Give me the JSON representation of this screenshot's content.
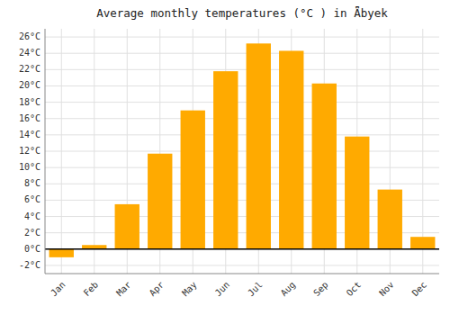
{
  "chart_data": {
    "type": "bar",
    "title": "Average monthly temperatures (°C ) in Ǟbyek",
    "categories": [
      "Jan",
      "Feb",
      "Mar",
      "Apr",
      "May",
      "Jun",
      "Jul",
      "Aug",
      "Sep",
      "Oct",
      "Nov",
      "Dec"
    ],
    "values": [
      -1.0,
      0.5,
      5.5,
      11.7,
      17.0,
      21.8,
      25.2,
      24.3,
      20.3,
      13.8,
      7.3,
      1.5
    ],
    "color": "#FFAA00",
    "ylim": [
      -3.0,
      27.0
    ],
    "yticks": [
      {
        "value": -2,
        "label": "-2°C"
      },
      {
        "value": 0,
        "label": "0°C"
      },
      {
        "value": 2,
        "label": "2°C"
      },
      {
        "value": 4,
        "label": "4°C"
      },
      {
        "value": 6,
        "label": "6°C"
      },
      {
        "value": 8,
        "label": "8°C"
      },
      {
        "value": 10,
        "label": "10°C"
      },
      {
        "value": 12,
        "label": "12°C"
      },
      {
        "value": 14,
        "label": "14°C"
      },
      {
        "value": 16,
        "label": "16°C"
      },
      {
        "value": 18,
        "label": "18°C"
      },
      {
        "value": 20,
        "label": "20°C"
      },
      {
        "value": 22,
        "label": "22°C"
      },
      {
        "value": 24,
        "label": "24°C"
      },
      {
        "value": 26,
        "label": "26°C"
      }
    ],
    "grid": true
  }
}
